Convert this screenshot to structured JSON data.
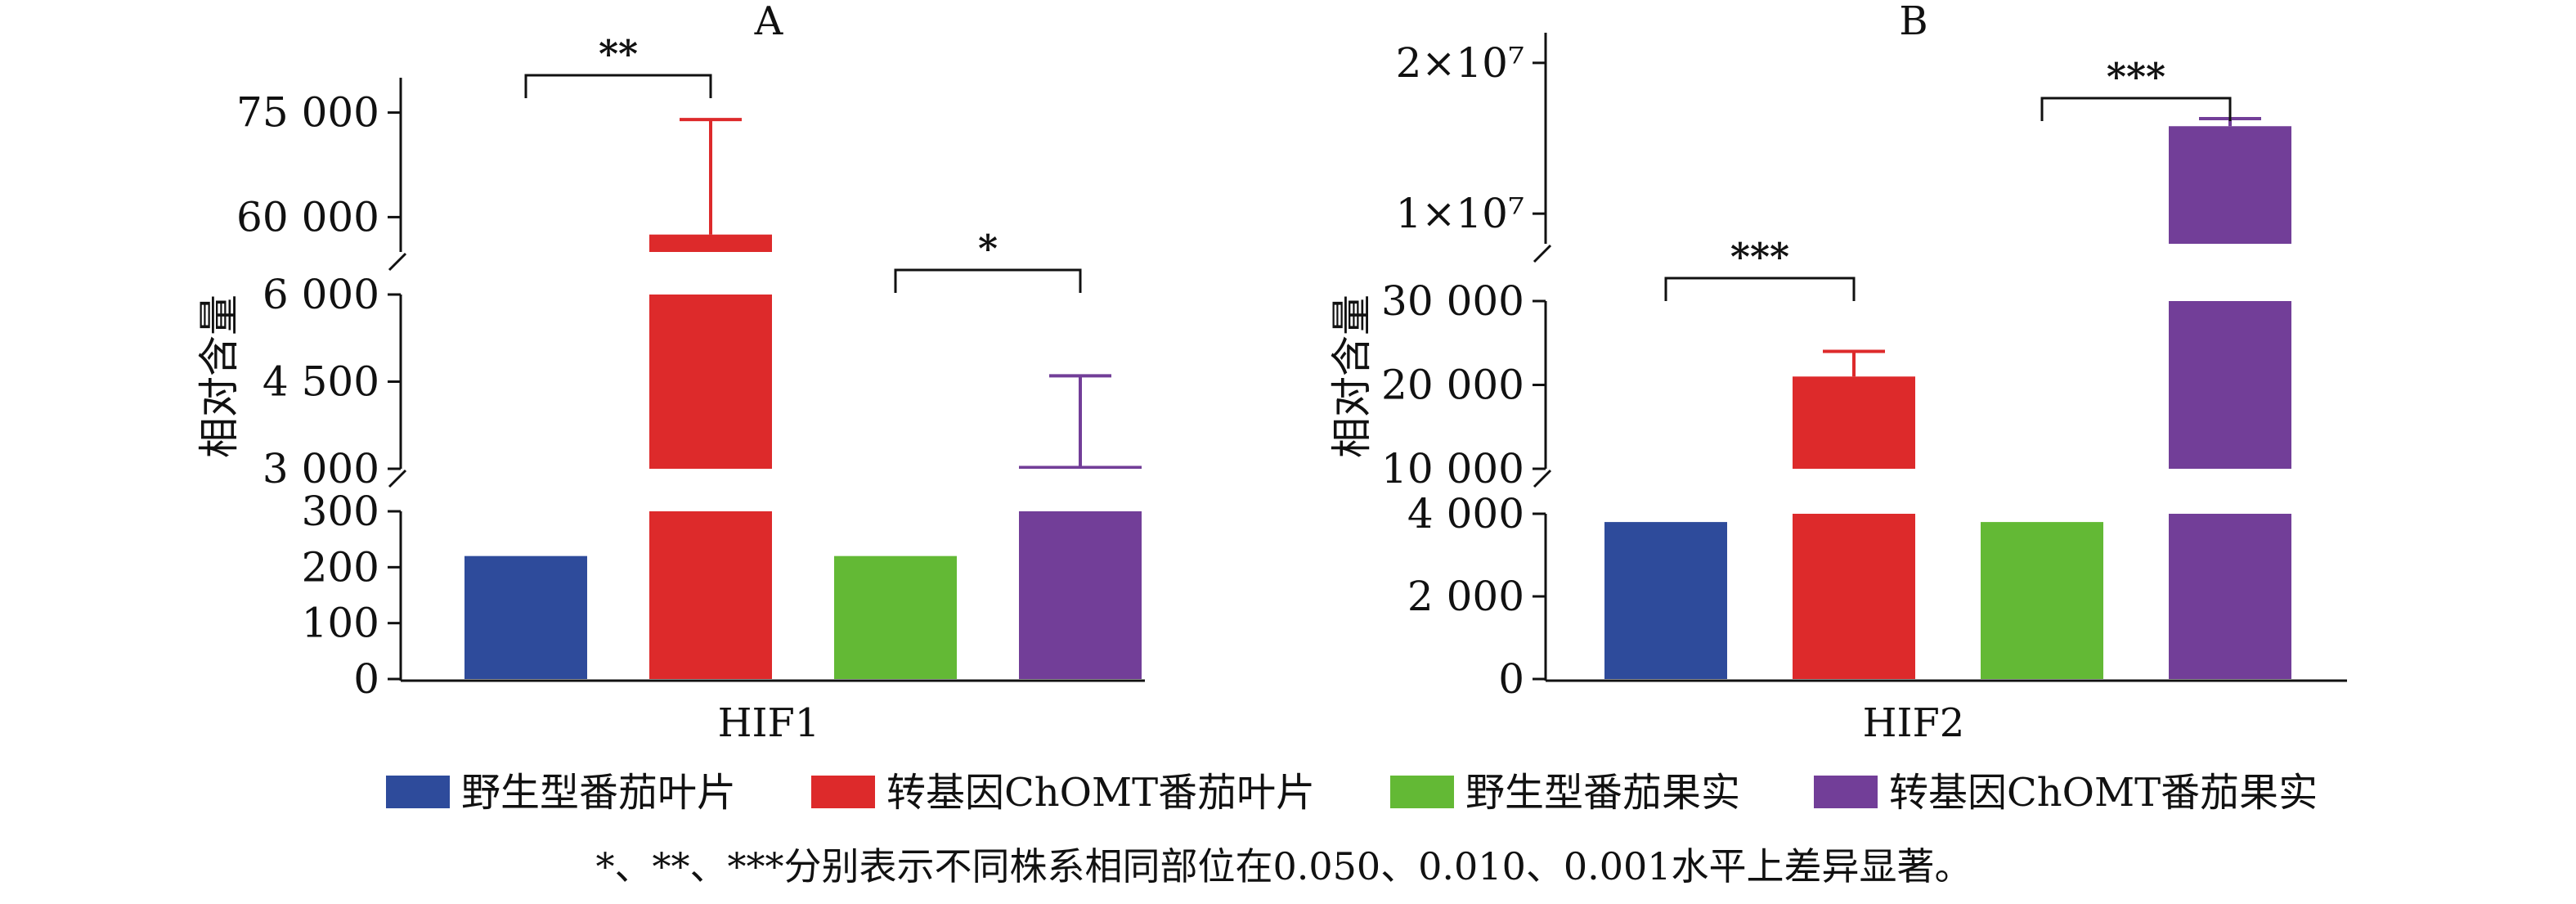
{
  "chart_data": [
    {
      "type": "bar",
      "panel_label": "A",
      "category": "HIF1",
      "ylabel": "相对含量",
      "axis_break": true,
      "segments": [
        {
          "range": [
            0,
            300
          ],
          "ticks": [
            "0",
            "100",
            "200",
            "300"
          ]
        },
        {
          "range": [
            3000,
            6000
          ],
          "ticks": [
            "3 000",
            "4 500",
            "6 000"
          ]
        },
        {
          "range": [
            55000,
            80000
          ],
          "ticks": [
            "60 000",
            "75 000"
          ]
        }
      ],
      "series": [
        {
          "name": "野生型番茄叶片",
          "value": 220,
          "error": null
        },
        {
          "name": "转基因ChOMT番茄叶片",
          "value": 57500,
          "error": 16500
        },
        {
          "name": "野生型番茄果实",
          "value": 220,
          "error": null
        },
        {
          "name": "转基因ChOMT番茄果实",
          "value": 3050,
          "error": 1550
        }
      ],
      "significance": [
        {
          "between": [
            0,
            1
          ],
          "label": "**"
        },
        {
          "between": [
            2,
            3
          ],
          "label": "*"
        }
      ]
    },
    {
      "type": "bar",
      "panel_label": "B",
      "category": "HIF2",
      "ylabel": "相对含量",
      "axis_break": true,
      "segments": [
        {
          "range": [
            0,
            4000
          ],
          "ticks": [
            "0",
            "2 000",
            "4 000"
          ]
        },
        {
          "range": [
            10000,
            30000
          ],
          "ticks": [
            "10 000",
            "20 000",
            "30 000"
          ]
        },
        {
          "range": [
            8000000,
            22000000
          ],
          "ticks": [
            "1×10⁷",
            "2×10⁷"
          ]
        }
      ],
      "series": [
        {
          "name": "野生型番茄叶片",
          "value": 3800,
          "error": null
        },
        {
          "name": "转基因ChOMT番茄叶片",
          "value": 21000,
          "error": 3000
        },
        {
          "name": "野生型番茄果实",
          "value": 3800,
          "error": null
        },
        {
          "name": "转基因ChOMT番茄果实",
          "value": 15800000,
          "error": 500000
        }
      ],
      "significance": [
        {
          "between": [
            0,
            1
          ],
          "label": "***"
        },
        {
          "between": [
            2,
            3
          ],
          "label": "***"
        }
      ]
    }
  ],
  "colors": [
    "#2e4b9b",
    "#dd2a2b",
    "#63b935",
    "#723e98"
  ],
  "legend": [
    "野生型番茄叶片",
    "转基因ChOMT番茄叶片",
    "野生型番茄果实",
    "转基因ChOMT番茄果实"
  ],
  "footnote": "*、**、***分别表示不同株系相同部位在0.050、0.010、0.001水平上差异显著。"
}
